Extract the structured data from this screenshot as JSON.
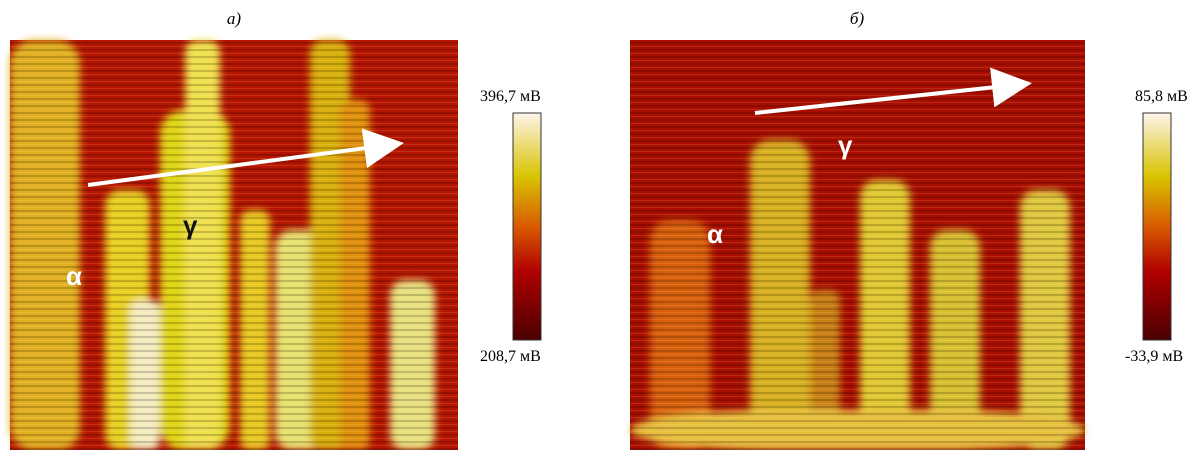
{
  "panels": [
    {
      "label": "а)",
      "colorbar": {
        "max_label": "396,7 мВ",
        "min_label": "208,7 мВ"
      },
      "phase_labels": [
        "α",
        "γ"
      ]
    },
    {
      "label": "б)",
      "colorbar": {
        "max_label": "85,8 мВ",
        "min_label": "-33,9 мВ"
      },
      "phase_labels": [
        "α",
        "γ"
      ]
    }
  ]
}
